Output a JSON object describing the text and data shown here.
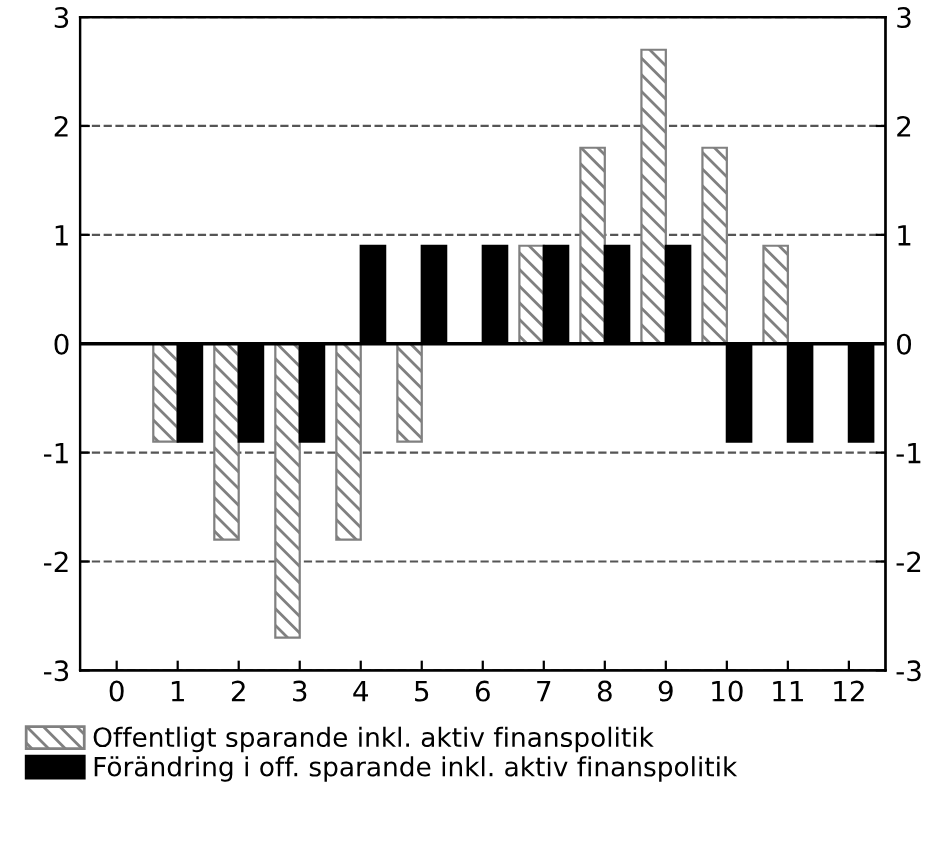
{
  "chart_data": {
    "type": "bar",
    "categories": [
      "0",
      "1",
      "2",
      "3",
      "4",
      "5",
      "6",
      "7",
      "8",
      "9",
      "10",
      "11",
      "12"
    ],
    "series": [
      {
        "name": "Offentligt sparande inkl. aktiv finanspolitik",
        "color": "#808080",
        "values": [
          null,
          -0.9,
          -1.8,
          -2.7,
          -1.8,
          -0.9,
          0,
          0.9,
          1.8,
          2.7,
          1.8,
          0.9,
          0
        ]
      },
      {
        "name": "Förändring i off. sparande inkl. aktiv finanspolitik",
        "color": "#000000",
        "values": [
          null,
          -0.9,
          -0.9,
          -0.9,
          0.9,
          0.9,
          0.9,
          0.9,
          0.9,
          0.9,
          -0.9,
          -0.9,
          -0.9
        ]
      }
    ],
    "ylim": [
      -3,
      3
    ],
    "yticks": [
      -3,
      -2,
      -1,
      0,
      1,
      2,
      3
    ],
    "y2lim": [
      -3,
      3
    ],
    "y2ticks": [
      -3,
      -2,
      -1,
      0,
      1,
      2,
      3
    ],
    "grid": "y",
    "legend": "bottom"
  }
}
